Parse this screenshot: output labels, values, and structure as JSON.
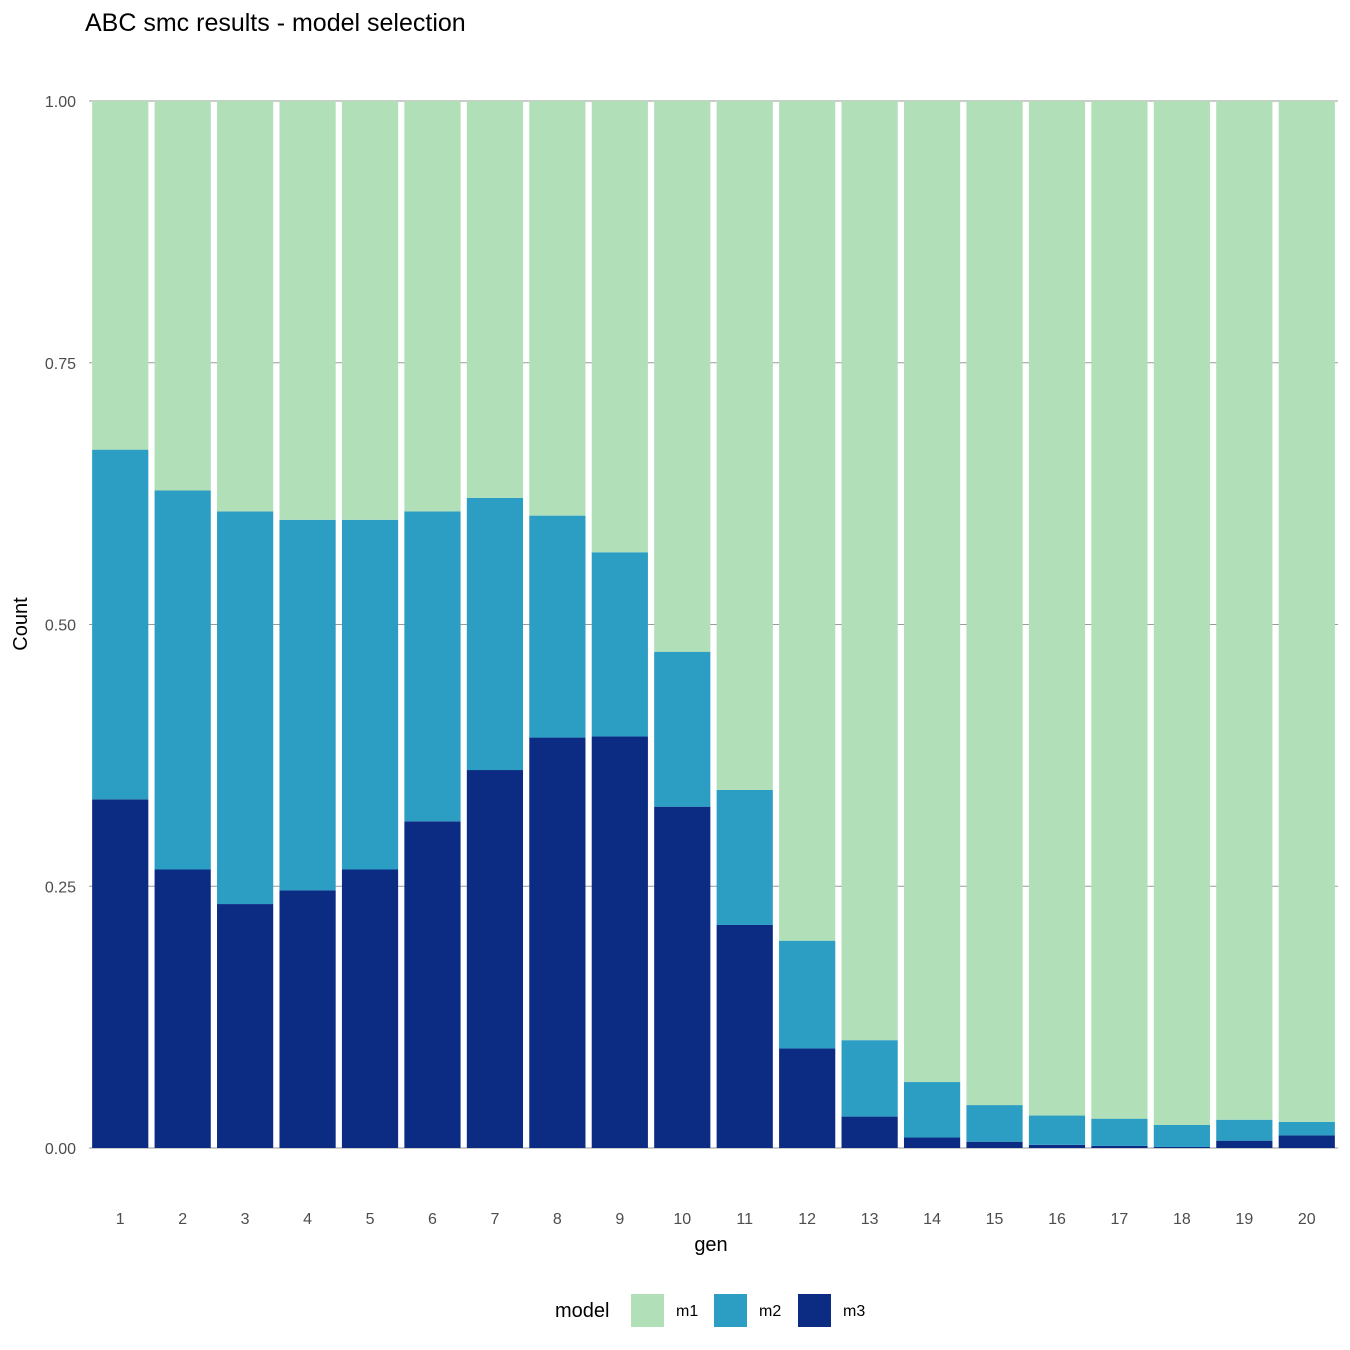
{
  "chart_data": {
    "type": "bar",
    "stacked": true,
    "title": "ABC smc results - model selection",
    "xlabel": "gen",
    "ylabel": "Count",
    "ylim": [
      0,
      1
    ],
    "yticks": [
      "0.00",
      "0.25",
      "0.50",
      "0.75",
      "1.00"
    ],
    "grid": true,
    "legend_position": "bottom",
    "legend_title": "model",
    "categories": [
      "1",
      "2",
      "3",
      "4",
      "5",
      "6",
      "7",
      "8",
      "9",
      "10",
      "11",
      "12",
      "13",
      "14",
      "15",
      "16",
      "17",
      "18",
      "19",
      "20"
    ],
    "series": [
      {
        "name": "m3",
        "color": "#0c2c84",
        "values": [
          0.333,
          0.266,
          0.233,
          0.246,
          0.266,
          0.312,
          0.361,
          0.392,
          0.393,
          0.326,
          0.213,
          0.095,
          0.03,
          0.01,
          0.006,
          0.003,
          0.002,
          0.001,
          0.007,
          0.012
        ]
      },
      {
        "name": "m2",
        "color": "#2c9ec4",
        "values": [
          0.334,
          0.362,
          0.375,
          0.354,
          0.334,
          0.296,
          0.26,
          0.212,
          0.176,
          0.148,
          0.129,
          0.103,
          0.073,
          0.053,
          0.035,
          0.028,
          0.026,
          0.021,
          0.02,
          0.013
        ]
      },
      {
        "name": "m1",
        "color": "#b1e0b8",
        "values": [
          0.333,
          0.372,
          0.392,
          0.4,
          0.4,
          0.392,
          0.379,
          0.396,
          0.431,
          0.526,
          0.658,
          0.802,
          0.897,
          0.937,
          0.959,
          0.969,
          0.972,
          0.978,
          0.973,
          0.975
        ]
      }
    ],
    "legend_order": [
      "m1",
      "m2",
      "m3"
    ]
  }
}
